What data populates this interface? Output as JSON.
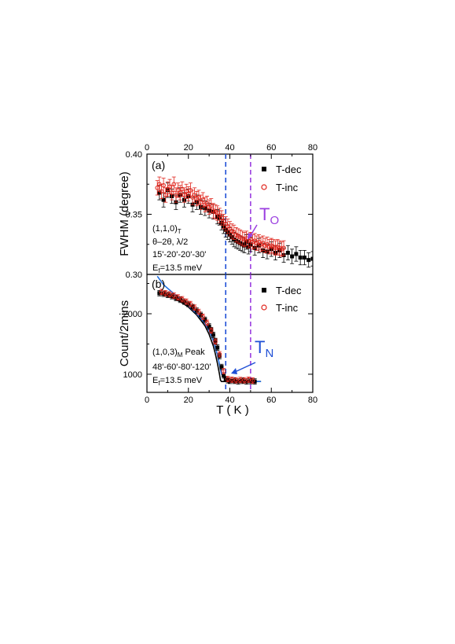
{
  "chart_data": [
    {
      "panel": "a",
      "type": "scatter",
      "panel_tag": "(a)",
      "ylabel": "FWHM (degree)",
      "xlim": [
        0,
        80
      ],
      "ylim": [
        0.3,
        0.4
      ],
      "xticks": [
        0,
        20,
        40,
        60,
        80
      ],
      "yticks": [
        0.3,
        0.35,
        0.4
      ],
      "ytick_labels": [
        "0.30",
        "0.35",
        "0.40"
      ],
      "top_axis_ticks": [
        0,
        20,
        40,
        60,
        80
      ],
      "legend": [
        {
          "label": "T-dec",
          "marker": "filled-square",
          "color": "#000000"
        },
        {
          "label": "T-inc",
          "marker": "open-circle",
          "color": "#e0241b"
        }
      ],
      "annotations": {
        "reflection": "(1,1,0)",
        "reflection_sub": "T",
        "scan": "θ–2θ, λ/2",
        "collimation": "15'-20'-20'-30'",
        "energy_pre": "E",
        "energy_sub": "f",
        "energy_post": "=13.5 meV",
        "transition_main": "T",
        "transition_sub": "O"
      },
      "vlines": [
        {
          "x": 38,
          "color": "#1f4fd6"
        },
        {
          "x": 50,
          "color": "#9b3fe0"
        }
      ],
      "series": [
        {
          "name": "T-dec",
          "color": "#000000",
          "x": [
            6,
            8,
            10,
            12,
            14,
            16,
            18,
            20,
            22,
            24,
            26,
            28,
            30,
            32,
            34,
            35,
            36,
            37,
            38,
            39,
            40,
            41,
            42,
            43,
            44,
            45,
            46,
            47,
            48,
            49,
            50,
            52,
            54,
            56,
            58,
            60,
            62,
            64,
            66,
            68,
            70,
            72,
            74,
            76,
            78,
            80
          ],
          "y": [
            0.368,
            0.362,
            0.37,
            0.365,
            0.36,
            0.366,
            0.362,
            0.365,
            0.358,
            0.36,
            0.356,
            0.355,
            0.353,
            0.352,
            0.348,
            0.347,
            0.343,
            0.34,
            0.337,
            0.335,
            0.333,
            0.331,
            0.329,
            0.328,
            0.327,
            0.326,
            0.325,
            0.324,
            0.327,
            0.323,
            0.325,
            0.322,
            0.324,
            0.32,
            0.319,
            0.321,
            0.318,
            0.32,
            0.316,
            0.318,
            0.315,
            0.317,
            0.314,
            0.314,
            0.312,
            0.313
          ]
        },
        {
          "name": "T-inc",
          "color": "#e0241b",
          "x": [
            5,
            6,
            7,
            8,
            9,
            10,
            11,
            12,
            13,
            14,
            15,
            16,
            17,
            18,
            19,
            20,
            21,
            22,
            23,
            24,
            25,
            26,
            27,
            28,
            29,
            30,
            31,
            32,
            33,
            34,
            35,
            36,
            37,
            38,
            39,
            40,
            41,
            42,
            43,
            44,
            45,
            46,
            47,
            48,
            49,
            50,
            51,
            52,
            53,
            54,
            55,
            56,
            57,
            58,
            59,
            60,
            61,
            62,
            63,
            64,
            65,
            66
          ],
          "y": [
            0.372,
            0.375,
            0.369,
            0.374,
            0.366,
            0.371,
            0.373,
            0.368,
            0.375,
            0.366,
            0.37,
            0.368,
            0.371,
            0.366,
            0.369,
            0.367,
            0.37,
            0.364,
            0.366,
            0.363,
            0.364,
            0.36,
            0.362,
            0.358,
            0.359,
            0.356,
            0.357,
            0.353,
            0.352,
            0.351,
            0.349,
            0.347,
            0.344,
            0.342,
            0.34,
            0.338,
            0.336,
            0.335,
            0.333,
            0.332,
            0.331,
            0.33,
            0.329,
            0.33,
            0.328,
            0.329,
            0.327,
            0.328,
            0.326,
            0.327,
            0.325,
            0.326,
            0.324,
            0.325,
            0.323,
            0.324,
            0.323,
            0.322,
            0.323,
            0.322,
            0.321,
            0.322
          ]
        }
      ]
    },
    {
      "panel": "b",
      "type": "scatter",
      "panel_tag": "(b)",
      "xlabel": "T ( K )",
      "ylabel": "Count/2mins",
      "xlim": [
        0,
        80
      ],
      "ylim": [
        700,
        2650
      ],
      "xticks": [
        0,
        20,
        40,
        60,
        80
      ],
      "yticks": [
        1000,
        2000
      ],
      "legend": [
        {
          "label": "T-dec",
          "marker": "filled-square",
          "color": "#000000"
        },
        {
          "label": "T-inc",
          "marker": "open-circle",
          "color": "#e0241b"
        }
      ],
      "annotations": {
        "reflection": "(1,0,3)",
        "reflection_sub": "M",
        "reflection_post": " Peak",
        "collimation": "48'-60'-80'-120'",
        "energy_pre": "E",
        "energy_sub": "f",
        "energy_post": "=13.5 meV",
        "transition_main": "T",
        "transition_sub": "N"
      },
      "vlines": [
        {
          "x": 38,
          "color": "#1f4fd6"
        },
        {
          "x": 50,
          "color": "#9b3fe0"
        }
      ],
      "fit_lines": [
        {
          "name": "fit-black",
          "color": "#000000",
          "x": [
            8,
            12,
            16,
            20,
            24,
            28,
            30,
            32,
            33,
            34,
            35,
            35.5,
            36,
            36.5,
            40,
            45,
            50,
            55
          ],
          "y": [
            2320,
            2270,
            2200,
            2110,
            1980,
            1800,
            1660,
            1470,
            1340,
            1180,
            1000,
            900,
            880,
            880,
            880,
            880,
            880,
            880
          ]
        },
        {
          "name": "fit-blue",
          "color": "#1f6fe0",
          "x": [
            5,
            8,
            12,
            16,
            20,
            24,
            28,
            30,
            32,
            34,
            36,
            38,
            40,
            45,
            50,
            55
          ],
          "y": [
            2620,
            2480,
            2360,
            2250,
            2130,
            2000,
            1840,
            1720,
            1560,
            1320,
            1000,
            930,
            900,
            890,
            880,
            880
          ]
        }
      ],
      "series": [
        {
          "name": "T-dec",
          "color": "#000000",
          "x": [
            6,
            8,
            10,
            12,
            14,
            16,
            18,
            20,
            22,
            24,
            26,
            28,
            30,
            31,
            32,
            33,
            34,
            35,
            36,
            37,
            38,
            39,
            40,
            42,
            44,
            46,
            48,
            50,
            52
          ],
          "y": [
            2340,
            2330,
            2310,
            2290,
            2260,
            2230,
            2200,
            2160,
            2110,
            2050,
            1980,
            1900,
            1790,
            1730,
            1650,
            1550,
            1440,
            1300,
            1120,
            980,
            920,
            900,
            890,
            890,
            880,
            890,
            880,
            885,
            880
          ]
        },
        {
          "name": "T-inc",
          "color": "#e0241b",
          "x": [
            7,
            9,
            11,
            13,
            15,
            17,
            19,
            21,
            23,
            25,
            27,
            29,
            31,
            33,
            35,
            37,
            39,
            41,
            43,
            45,
            47,
            49,
            51
          ],
          "y": [
            2360,
            2340,
            2320,
            2300,
            2270,
            2240,
            2200,
            2160,
            2100,
            2030,
            1950,
            1850,
            1720,
            1540,
            1330,
            1050,
            920,
            910,
            900,
            905,
            900,
            910,
            895
          ]
        }
      ]
    }
  ]
}
